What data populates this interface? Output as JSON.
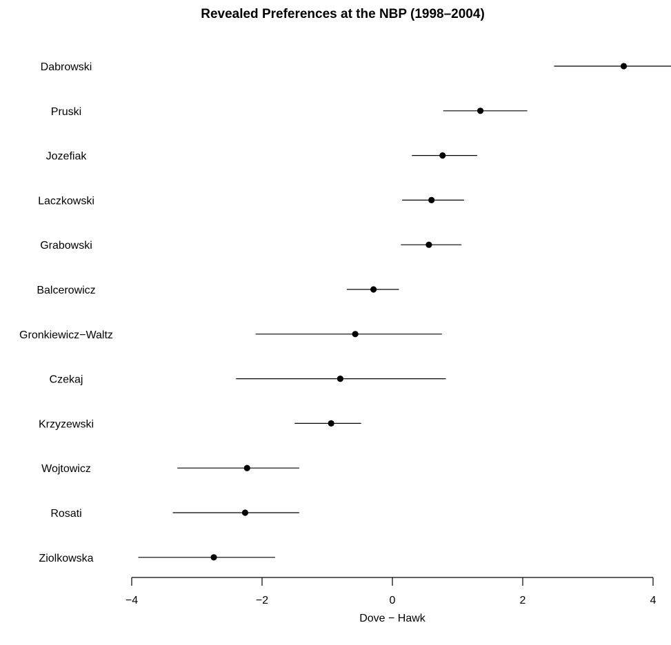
{
  "chart_data": {
    "type": "scatter",
    "title": "Revealed Preferences at the NBP (1998–2004)",
    "xlabel": "Dove − Hawk",
    "ylabel": "",
    "xlim": [
      -4,
      4
    ],
    "xticks": [
      -4,
      -2,
      0,
      2,
      4
    ],
    "xtick_labels": [
      "−4",
      "−2",
      "0",
      "2",
      "4"
    ],
    "grid": false,
    "legend": "none",
    "point_color": "#000000",
    "series": [
      {
        "points": [
          {
            "label": "Dabrowski",
            "estimate": 3.55,
            "lower": 2.48,
            "upper": 4.3
          },
          {
            "label": "Pruski",
            "estimate": 1.35,
            "lower": 0.78,
            "upper": 2.07
          },
          {
            "label": "Jozefiak",
            "estimate": 0.77,
            "lower": 0.3,
            "upper": 1.3
          },
          {
            "label": "Laczkowski",
            "estimate": 0.6,
            "lower": 0.15,
            "upper": 1.1
          },
          {
            "label": "Grabowski",
            "estimate": 0.56,
            "lower": 0.13,
            "upper": 1.06
          },
          {
            "label": "Balcerowicz",
            "estimate": -0.29,
            "lower": -0.7,
            "upper": 0.1
          },
          {
            "label": "Gronkiewicz−Waltz",
            "estimate": -0.57,
            "lower": -2.1,
            "upper": 0.76
          },
          {
            "label": "Czekaj",
            "estimate": -0.8,
            "lower": -2.4,
            "upper": 0.82
          },
          {
            "label": "Krzyzewski",
            "estimate": -0.94,
            "lower": -1.5,
            "upper": -0.48
          },
          {
            "label": "Wojtowicz",
            "estimate": -2.23,
            "lower": -3.3,
            "upper": -1.43
          },
          {
            "label": "Rosati",
            "estimate": -2.26,
            "lower": -3.37,
            "upper": -1.43
          },
          {
            "label": "Ziolkowska",
            "estimate": -2.74,
            "lower": -3.9,
            "upper": -1.8
          }
        ]
      }
    ]
  }
}
